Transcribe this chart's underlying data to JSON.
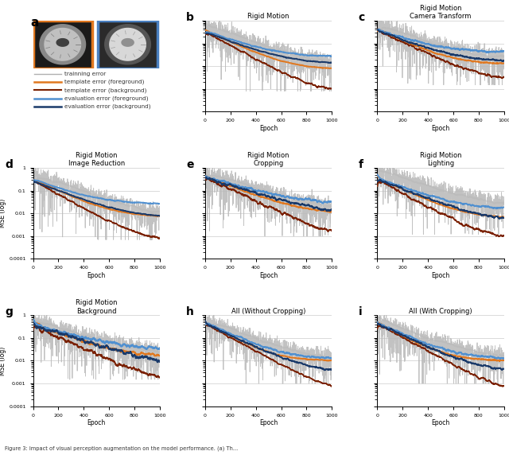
{
  "subplot_titles": [
    "Rigid Motion",
    "Rigid Motion\nCamera Transform",
    "Rigid Motion\nImage Reduction",
    "Rigid Motion\nCropping",
    "Rigid Motion\nLighting",
    "Rigid Motion\nBackground",
    "All (Without Cropping)",
    "All (With Cropping)"
  ],
  "subplot_labels": [
    "b",
    "c",
    "d",
    "e",
    "f",
    "g",
    "h",
    "i"
  ],
  "panel_a_label": "a",
  "legend_entries": [
    {
      "label": "trainning error",
      "color": "#b0b0b0",
      "lw": 1.0
    },
    {
      "label": "template error (foreground)",
      "color": "#e07820",
      "lw": 1.8
    },
    {
      "label": "template error (background)",
      "color": "#7a2000",
      "lw": 1.5
    },
    {
      "label": "evaluation error (foreground)",
      "color": "#5090d0",
      "lw": 1.8
    },
    {
      "label": "evaluation error (background)",
      "color": "#1a3a6a",
      "lw": 1.8
    }
  ],
  "ylim": [
    0.0001,
    1.0
  ],
  "xlim": [
    0,
    1000
  ],
  "yticks": [
    0.0001,
    0.001,
    0.01,
    0.1,
    1
  ],
  "ytick_labels": [
    "0.0001",
    "0.001",
    "0.01",
    "0.1",
    "1"
  ],
  "xticks": [
    0,
    200,
    400,
    600,
    800,
    1000
  ],
  "xlabel": "Epoch",
  "ylabel": "MSE (log)",
  "colors": {
    "train": "#b8b8b8",
    "tmpl_fg": "#e07820",
    "tmpl_bg": "#7a2000",
    "eval_fg": "#5090d0",
    "eval_bg": "#1a3a6a"
  },
  "n_epochs": 1000,
  "seed": 42,
  "caption": "Figure 3: Impact of visual perception augmentation on the model performance. (a) Th..."
}
